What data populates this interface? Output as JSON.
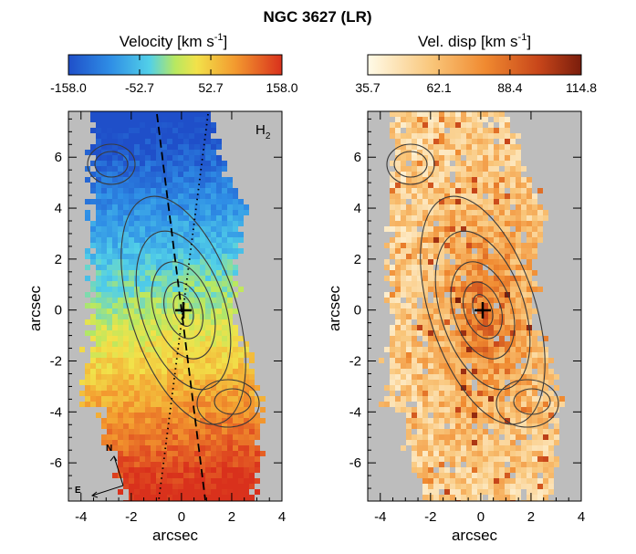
{
  "title": "NGC 3627 (LR)",
  "colors": {
    "background": "#ffffff",
    "nodata": "#bdbdbd",
    "contour": "#3a3a3a"
  },
  "chart_data": [
    {
      "type": "heatmap",
      "panel": "velocity",
      "colorbar": {
        "label": "Velocity",
        "unit_prefix": "[km s",
        "unit_sup": "-1",
        "unit_suffix": "]",
        "ticks": [
          "-158.0",
          "-52.7",
          "52.7",
          "158.0"
        ],
        "range": [
          -158.0,
          158.0
        ],
        "colormap": "blue-cyan-yellow-red"
      },
      "label": "H",
      "label_sub": "2",
      "xlabel": "arcsec",
      "ylabel": "arcsec",
      "xticks": [
        "-4",
        "-2",
        "0",
        "2",
        "4"
      ],
      "yticks": [
        "6",
        "4",
        "2",
        "0",
        "-2",
        "-4",
        "-6"
      ],
      "xlim": [
        -4.5,
        4.0
      ],
      "ylim": [
        -7.5,
        7.8
      ],
      "compass": {
        "north": "N",
        "east": "E"
      },
      "center": [
        0,
        0
      ],
      "grid": false
    },
    {
      "type": "heatmap",
      "panel": "dispersion",
      "colorbar": {
        "label": "Vel. disp",
        "unit_prefix": "[km s",
        "unit_sup": "-1",
        "unit_suffix": "]",
        "ticks": [
          "35.7",
          "62.1",
          "88.4",
          "114.8"
        ],
        "range": [
          35.7,
          114.8
        ],
        "colormap": "white-orange-darkred"
      },
      "xlabel": "arcsec",
      "ylabel": "arcsec",
      "xticks": [
        "-4",
        "-2",
        "0",
        "2",
        "4"
      ],
      "yticks": [
        "6",
        "4",
        "2",
        "0",
        "-2",
        "-4",
        "-6"
      ],
      "xlim": [
        -4.5,
        4.0
      ],
      "ylim": [
        -7.5,
        7.8
      ],
      "center": [
        0,
        0
      ],
      "grid": false
    }
  ]
}
